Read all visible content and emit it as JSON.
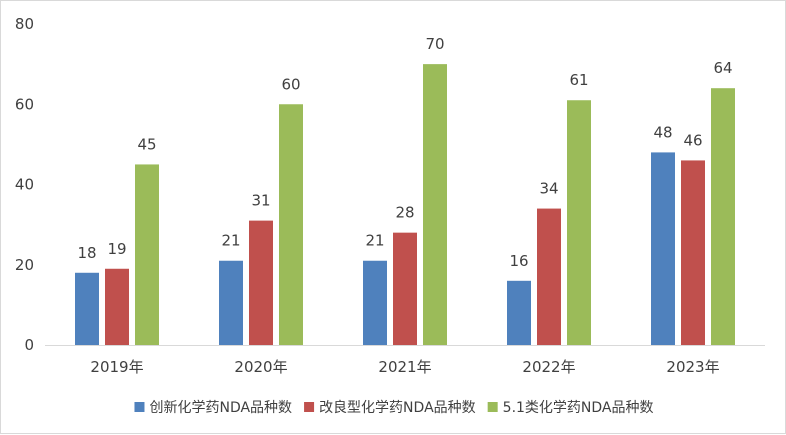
{
  "chart_data": {
    "type": "bar",
    "categories": [
      "2019年",
      "2020年",
      "2021年",
      "2022年",
      "2023年"
    ],
    "series": [
      {
        "name": "创新化学药NDA品种数",
        "values": [
          18,
          21,
          21,
          16,
          48
        ],
        "color": "#4f81bd"
      },
      {
        "name": "改良型化学药NDA品种数",
        "values": [
          19,
          31,
          28,
          34,
          46
        ],
        "color": "#c0504d"
      },
      {
        "name": "5.1类化学药NDA品种数",
        "values": [
          45,
          60,
          70,
          61,
          64
        ],
        "color": "#9bbb59"
      }
    ],
    "ylim": [
      0,
      80
    ],
    "yticks": [
      0,
      20,
      40,
      60,
      80
    ],
    "grid": false,
    "legend_position": "bottom",
    "title": "",
    "xlabel": "",
    "ylabel": ""
  }
}
